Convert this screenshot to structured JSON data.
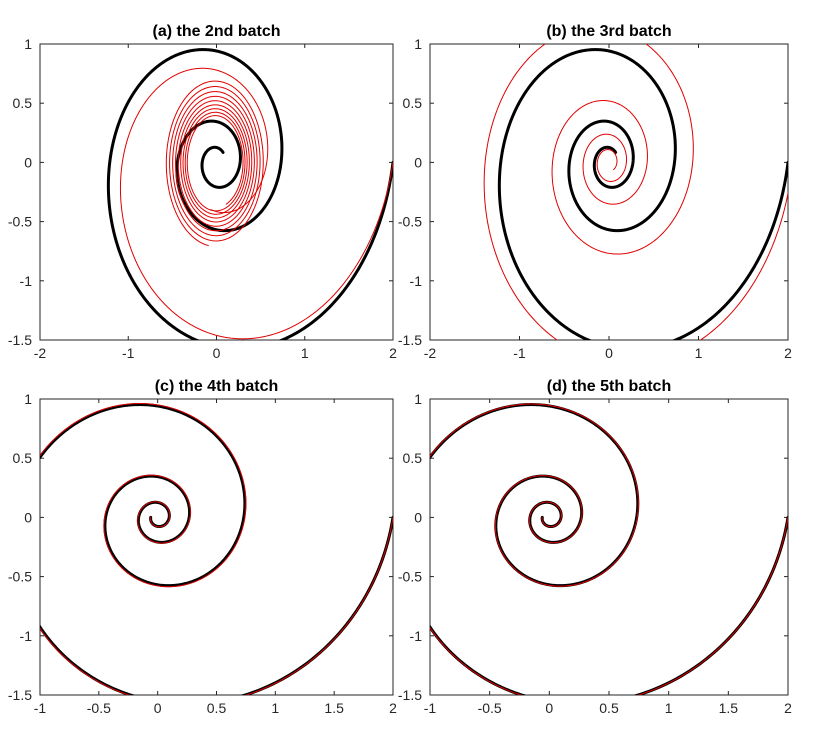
{
  "colors": {
    "reference": "#000000",
    "estimate": "#e00000",
    "axes": "#262626"
  },
  "chart_data": [
    {
      "type": "line",
      "title": "(a) the 2nd batch",
      "xlabel": "",
      "ylabel": "",
      "xlim": [
        -2,
        2
      ],
      "ylim": [
        -1.5,
        1
      ],
      "xticks": [
        "-2",
        "-1",
        "0",
        "1",
        "2"
      ],
      "yticks": [
        "1",
        "0.5",
        "0",
        "-0.5",
        "-1",
        "-1.5"
      ],
      "grid": false,
      "series": [
        {
          "color": "#000000",
          "width": 3,
          "spiral": {
            "a": 2.0,
            "b": -0.16,
            "omega": 1.0,
            "cx": 0.0,
            "cy": 0.0,
            "t_end": 18.0
          }
        },
        {
          "color": "#e00000",
          "width": 1,
          "spiral": {
            "a": 2.0,
            "b": -0.2,
            "omega": 1.0,
            "cx": 0.0,
            "cy": 0.0,
            "t_end": 8.0
          }
        },
        {
          "color": "#e00000",
          "width": 1,
          "spiral": {
            "a": 0.62,
            "b": -0.011,
            "omega": 1.0,
            "cx": 0.0,
            "cy": 0.0,
            "t0": 8.0,
            "t_end": 64.0,
            "offset_x": -0.01,
            "offset_y": 0.0,
            "stretch_y": 1.25
          }
        }
      ]
    },
    {
      "type": "line",
      "title": "(b) the 3rd batch",
      "xlabel": "",
      "ylabel": "",
      "xlim": [
        -2,
        2
      ],
      "ylim": [
        -1.5,
        1
      ],
      "xticks": [
        "-2",
        "-1",
        "0",
        "1",
        "2"
      ],
      "yticks": [
        "1",
        "0.5",
        "0",
        "-0.5",
        "-1",
        "-1.5"
      ],
      "grid": false,
      "series": [
        {
          "color": "#000000",
          "width": 3,
          "spiral": {
            "a": 2.0,
            "b": -0.16,
            "omega": 1.0,
            "cx": 0.0,
            "cy": 0.0,
            "t_end": 18.0
          }
        },
        {
          "color": "#e00000",
          "width": 1,
          "spiral": {
            "a": 2.05,
            "b": -0.125,
            "omega": 1.0,
            "cx": 0.0,
            "cy": 0.0,
            "t_end": 26.0
          }
        }
      ]
    },
    {
      "type": "line",
      "title": "(c) the 4th batch",
      "xlabel": "",
      "ylabel": "",
      "xlim": [
        -1,
        2
      ],
      "ylim": [
        -1.5,
        1
      ],
      "xticks": [
        "-1",
        "-0.5",
        "0",
        "0.5",
        "1",
        "1.5",
        "2"
      ],
      "yticks": [
        "1",
        "0.5",
        "0",
        "-0.5",
        "-1",
        "-1.5"
      ],
      "grid": false,
      "series": [
        {
          "color": "#000000",
          "width": 3,
          "spiral": {
            "a": 2.0,
            "b": -0.16,
            "omega": 1.0,
            "cx": 0.0,
            "cy": 0.0,
            "t_end": 22.0
          }
        },
        {
          "color": "#e00000",
          "width": 1,
          "spiral": {
            "a": 2.0,
            "b": -0.158,
            "omega": 1.0,
            "cx": 0.0,
            "cy": 0.0,
            "t_end": 22.0
          }
        }
      ]
    },
    {
      "type": "line",
      "title": "(d) the 5th batch",
      "xlabel": "",
      "ylabel": "",
      "xlim": [
        -1,
        2
      ],
      "ylim": [
        -1.5,
        1
      ],
      "xticks": [
        "-1",
        "-0.5",
        "0",
        "0.5",
        "1",
        "1.5",
        "2"
      ],
      "yticks": [
        "1",
        "0.5",
        "0",
        "-0.5",
        "-1",
        "-1.5"
      ],
      "grid": false,
      "series": [
        {
          "color": "#000000",
          "width": 3,
          "spiral": {
            "a": 2.0,
            "b": -0.16,
            "omega": 1.0,
            "cx": 0.0,
            "cy": 0.0,
            "t_end": 22.0
          }
        },
        {
          "color": "#e00000",
          "width": 1,
          "spiral": {
            "a": 2.0,
            "b": -0.159,
            "omega": 1.0,
            "cx": 0.0,
            "cy": 0.0,
            "t_end": 22.0
          }
        }
      ]
    }
  ]
}
